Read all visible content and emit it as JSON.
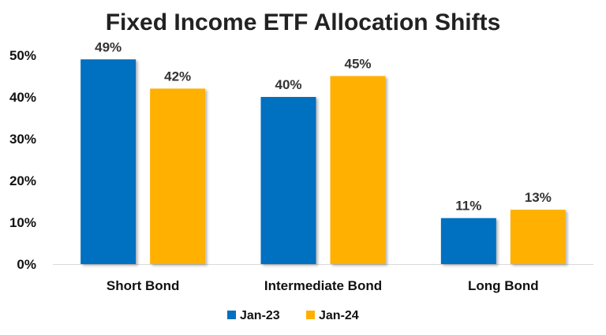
{
  "chart_data": {
    "type": "bar",
    "title": "Fixed Income ETF Allocation Shifts",
    "xlabel": "",
    "ylabel": "",
    "categories": [
      "Short Bond",
      "Intermediate Bond",
      "Long Bond"
    ],
    "series": [
      {
        "name": "Jan-23",
        "values": [
          49,
          40,
          11
        ],
        "color": "#0070C0"
      },
      {
        "name": "Jan-24",
        "values": [
          42,
          45,
          13
        ],
        "color": "#FFB000"
      }
    ],
    "ylim": [
      0,
      50
    ],
    "yticks": [
      0,
      10,
      20,
      30,
      40,
      50
    ],
    "ytick_labels": [
      "0%",
      "10%",
      "20%",
      "30%",
      "40%",
      "50%"
    ],
    "data_labels": [
      [
        "49%",
        "40%",
        "11%"
      ],
      [
        "42%",
        "45%",
        "13%"
      ]
    ],
    "value_format": "percent",
    "grid": false,
    "legend": "bottom-center"
  }
}
